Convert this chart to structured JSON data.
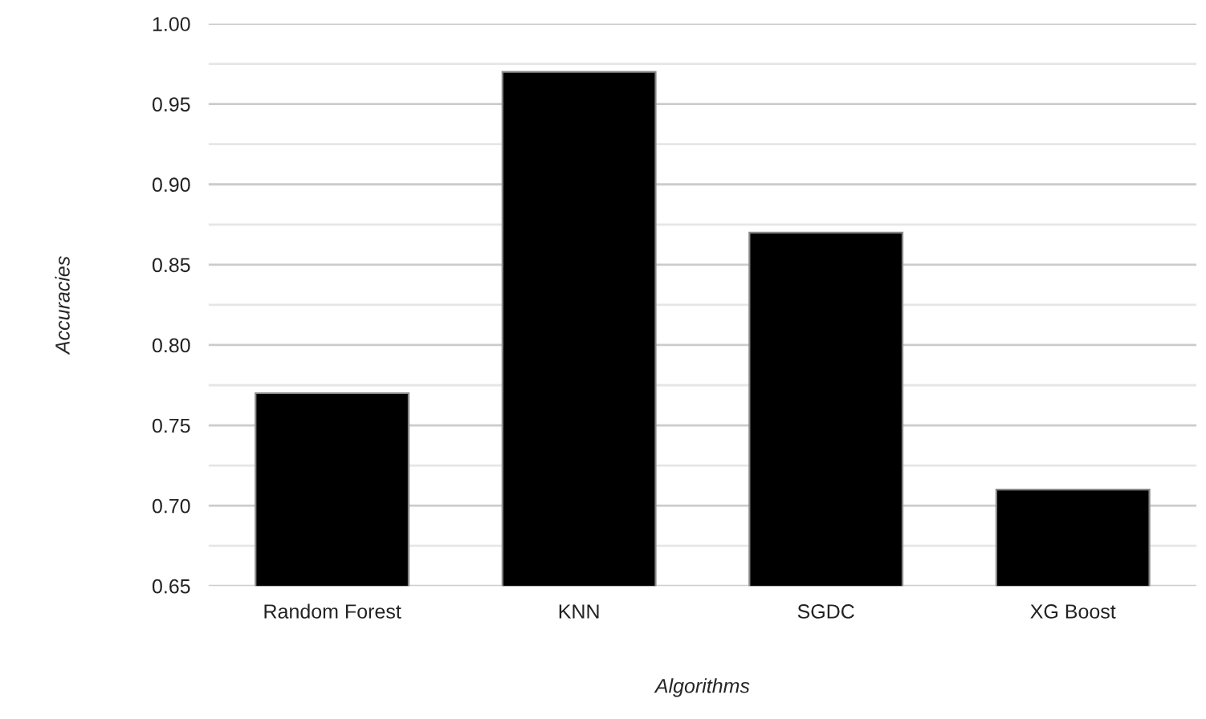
{
  "chart_data": {
    "type": "bar",
    "xlabel": "Algorithms",
    "ylabel": "Accuracies",
    "categories": [
      "Random Forest",
      "KNN",
      "SGDC",
      "XG Boost"
    ],
    "values": [
      0.77,
      0.97,
      0.87,
      0.71
    ],
    "color": "#000000",
    "ylim": [
      0.65,
      1.0
    ],
    "yticks": [
      {
        "value": 0.65,
        "label": "0.65"
      },
      {
        "value": 0.7,
        "label": "0.70"
      },
      {
        "value": 0.75,
        "label": "0.75"
      },
      {
        "value": 0.8,
        "label": "0.80"
      },
      {
        "value": 0.85,
        "label": "0.85"
      },
      {
        "value": 0.9,
        "label": "0.90"
      },
      {
        "value": 0.95,
        "label": "0.95"
      },
      {
        "value": 1.0,
        "label": "1.00"
      }
    ],
    "grid": "y"
  }
}
